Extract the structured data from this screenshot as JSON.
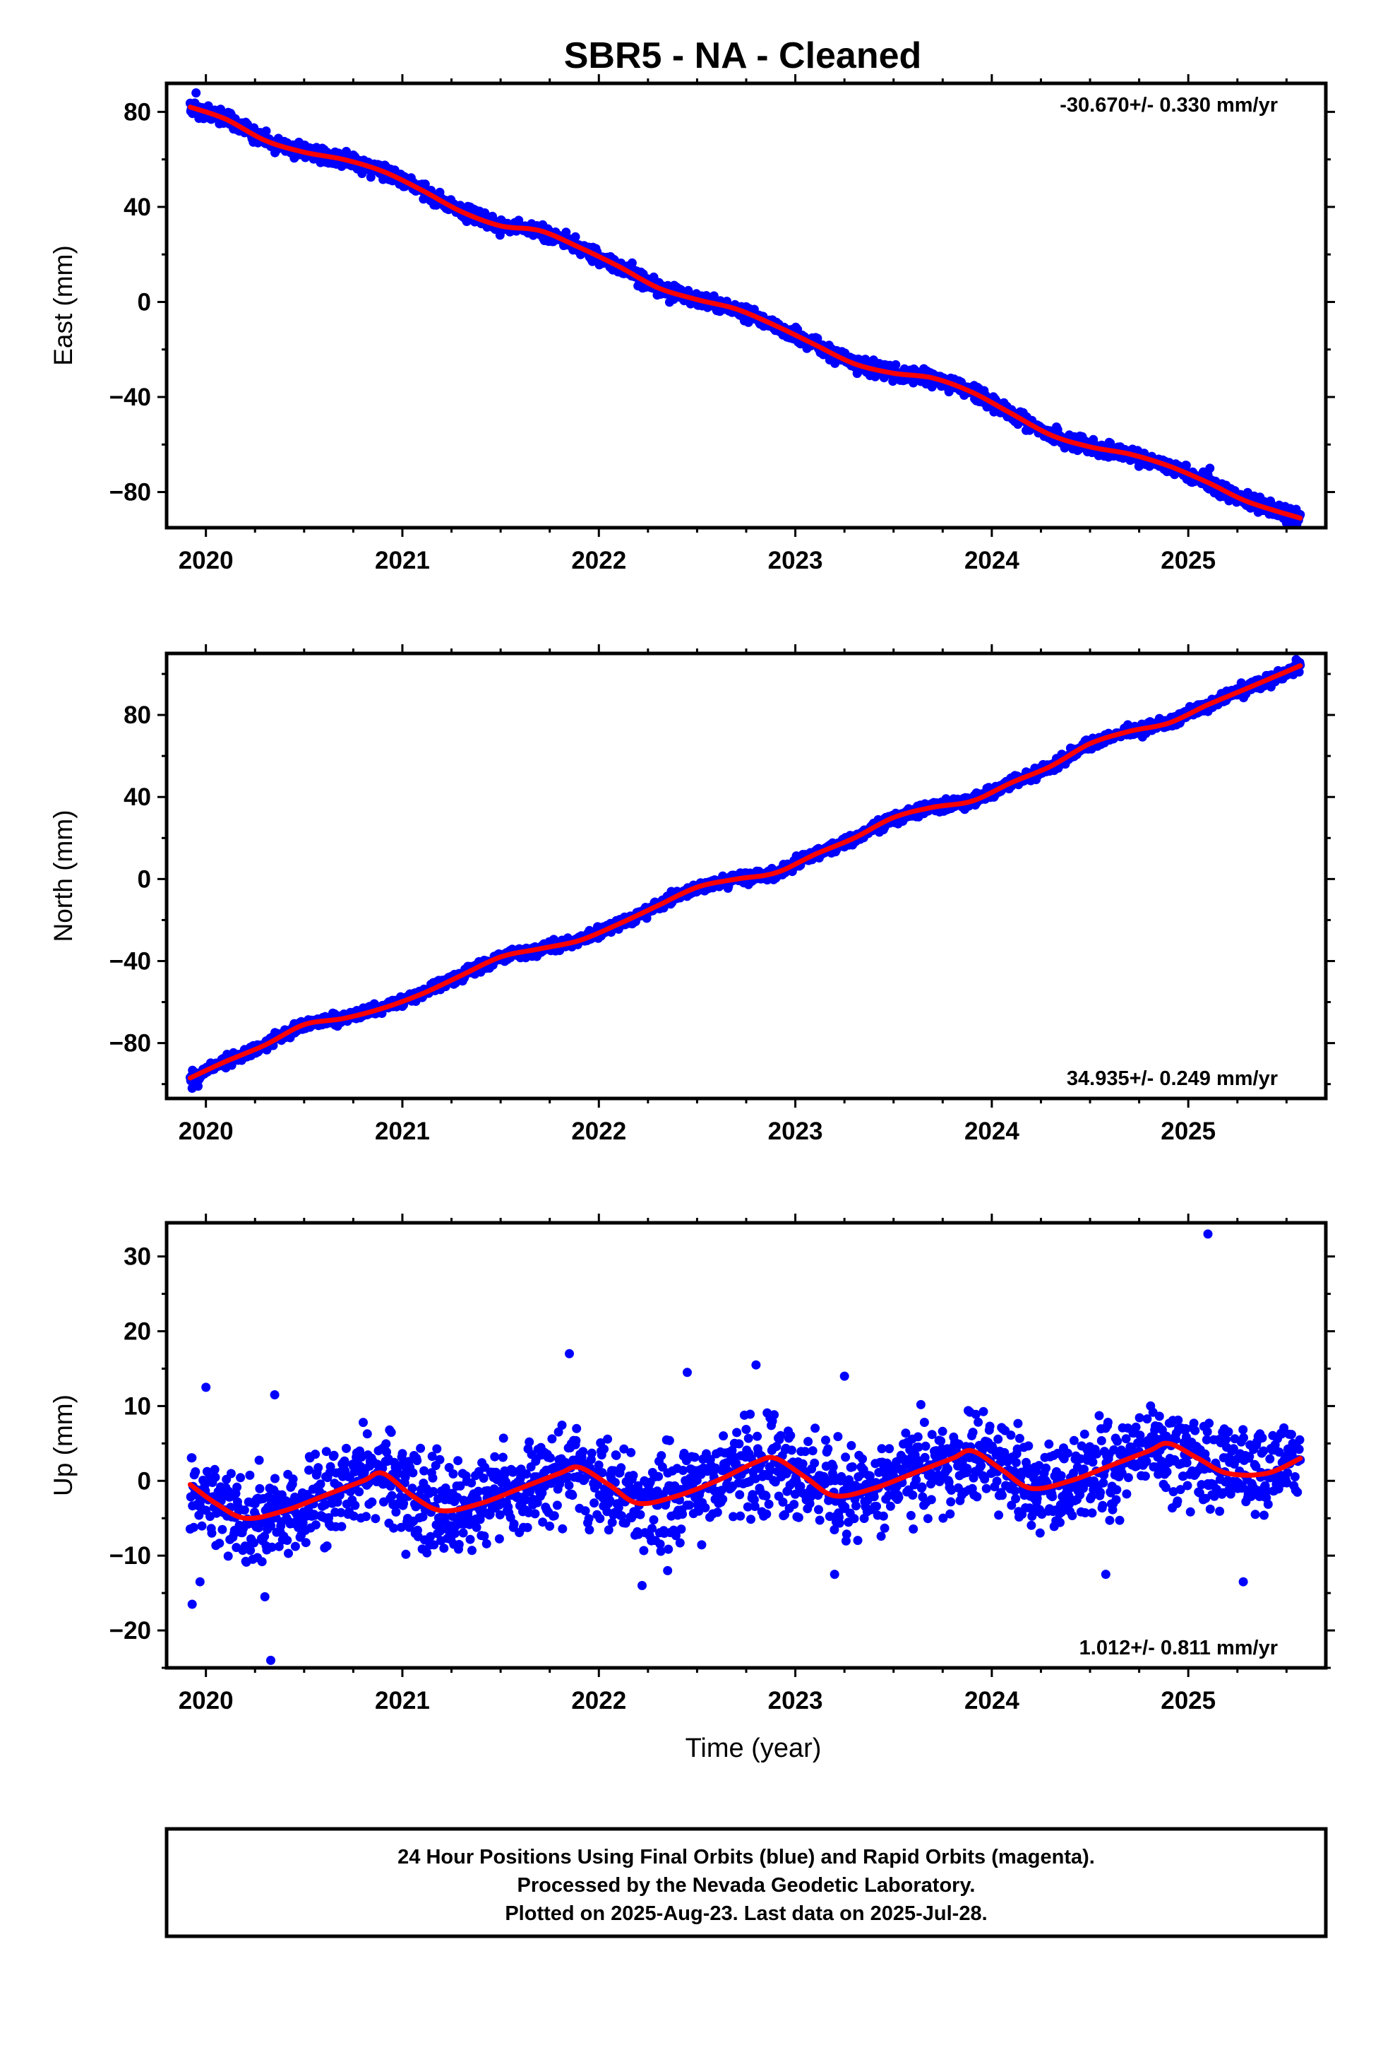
{
  "title": "SBR5  - NA - Cleaned",
  "footer": {
    "lines": [
      "24 Hour Positions Using Final Orbits (blue) and Rapid Orbits (magenta).",
      "Processed by the Nevada Geodetic Laboratory.",
      "Plotted on 2025-Aug-23. Last data on 2025-Jul-28."
    ]
  },
  "colors": {
    "points": "#0000ff",
    "model": "#ff0000",
    "frame": "#000000"
  },
  "chart_data": [
    {
      "type": "scatter",
      "ylabel": "East (mm)",
      "xlabel": "",
      "xlim": [
        2019.8,
        2025.7
      ],
      "ylim": [
        -95,
        92
      ],
      "x_ticks": [
        2020,
        2021,
        2022,
        2023,
        2024,
        2025
      ],
      "y_ticks": [
        -80,
        -40,
        0,
        40,
        80
      ],
      "rate_label": "-30.670+/- 0.330 mm/yr",
      "rate_position": "top-right",
      "grid": false,
      "series": [
        {
          "role": "model",
          "x": [
            2019.92,
            2020.1,
            2020.3,
            2020.5,
            2020.7,
            2020.9,
            2021.1,
            2021.3,
            2021.5,
            2021.7,
            2021.9,
            2022.1,
            2022.3,
            2022.5,
            2022.7,
            2022.9,
            2023.1,
            2023.3,
            2023.5,
            2023.7,
            2023.9,
            2024.1,
            2024.3,
            2024.5,
            2024.7,
            2024.9,
            2025.1,
            2025.3,
            2025.57
          ],
          "y": [
            82,
            77,
            68,
            63,
            60,
            55,
            47,
            38,
            32,
            30,
            23,
            15,
            6,
            1,
            -3,
            -10,
            -18,
            -26,
            -30,
            -32,
            -38,
            -47,
            -56,
            -61,
            -64,
            -69,
            -76,
            -84,
            -91
          ]
        },
        {
          "role": "observations",
          "x_start": 2019.92,
          "x_end": 2025.57,
          "count": 1900,
          "scatter_mm": 2.2,
          "outliers": [
            [
              2019.95,
              88
            ],
            [
              2025.11,
              -70
            ],
            [
              2025.5,
              -93
            ]
          ]
        }
      ]
    },
    {
      "type": "scatter",
      "ylabel": "North (mm)",
      "xlabel": "",
      "xlim": [
        2019.8,
        2025.7
      ],
      "ylim": [
        -107,
        110
      ],
      "x_ticks": [
        2020,
        2021,
        2022,
        2023,
        2024,
        2025
      ],
      "y_ticks": [
        -80,
        -40,
        0,
        40,
        80
      ],
      "rate_label": "34.935+/- 0.249 mm/yr",
      "rate_position": "bottom-right",
      "grid": false,
      "series": [
        {
          "role": "model",
          "x": [
            2019.92,
            2020.1,
            2020.3,
            2020.5,
            2020.7,
            2020.9,
            2021.1,
            2021.3,
            2021.5,
            2021.7,
            2021.9,
            2022.1,
            2022.3,
            2022.5,
            2022.7,
            2022.9,
            2023.1,
            2023.3,
            2023.5,
            2023.7,
            2023.9,
            2024.1,
            2024.3,
            2024.5,
            2024.7,
            2024.9,
            2025.1,
            2025.3,
            2025.57
          ],
          "y": [
            -97,
            -89,
            -81,
            -71,
            -68,
            -63,
            -56,
            -47,
            -38,
            -34,
            -30,
            -22,
            -13,
            -4,
            0,
            3,
            12,
            20,
            30,
            35,
            38,
            47,
            55,
            66,
            72,
            76,
            85,
            93,
            104
          ]
        },
        {
          "role": "observations",
          "x_start": 2019.92,
          "x_end": 2025.57,
          "count": 1900,
          "scatter_mm": 2.0,
          "outliers": [
            [
              2019.93,
              -102
            ],
            [
              2019.96,
              -101
            ],
            [
              2025.56,
              106
            ]
          ]
        }
      ]
    },
    {
      "type": "scatter",
      "ylabel": "Up (mm)",
      "xlabel": "Time (year)",
      "xlim": [
        2019.8,
        2025.7
      ],
      "ylim": [
        -25,
        34.5
      ],
      "x_ticks": [
        2020,
        2021,
        2022,
        2023,
        2024,
        2025
      ],
      "y_ticks": [
        -20,
        -10,
        0,
        10,
        20,
        30
      ],
      "rate_label": "1.012+/- 0.811 mm/yr",
      "rate_position": "bottom-right",
      "grid": false,
      "series": [
        {
          "role": "model",
          "x": [
            2019.92,
            2020.05,
            2020.2,
            2020.4,
            2020.6,
            2020.8,
            2020.9,
            2021.05,
            2021.2,
            2021.4,
            2021.6,
            2021.8,
            2021.9,
            2022.05,
            2022.2,
            2022.4,
            2022.6,
            2022.8,
            2022.9,
            2023.05,
            2023.2,
            2023.4,
            2023.6,
            2023.8,
            2023.9,
            2024.05,
            2024.2,
            2024.4,
            2024.6,
            2024.8,
            2024.9,
            2025.05,
            2025.2,
            2025.4,
            2025.57
          ],
          "y": [
            -0.5,
            -3,
            -5,
            -4,
            -2,
            0,
            1,
            -2,
            -4,
            -3,
            -1,
            1,
            1.8,
            -0.5,
            -3,
            -2,
            0,
            2.5,
            3,
            0.5,
            -2,
            -1,
            1,
            3,
            4,
            1.5,
            -1,
            0,
            2,
            4,
            5,
            3,
            1,
            1,
            3
          ]
        },
        {
          "role": "observations",
          "x_start": 2019.92,
          "x_end": 2025.57,
          "count": 1900,
          "scatter_mm": 4.2,
          "outliers": [
            [
              2019.93,
              -16.5
            ],
            [
              2019.97,
              -13.5
            ],
            [
              2020.0,
              12.5
            ],
            [
              2020.3,
              -15.5
            ],
            [
              2020.33,
              -24
            ],
            [
              2020.35,
              11.5
            ],
            [
              2021.85,
              17
            ],
            [
              2022.22,
              -14
            ],
            [
              2022.35,
              -12
            ],
            [
              2022.45,
              14.5
            ],
            [
              2022.8,
              15.5
            ],
            [
              2023.25,
              14
            ],
            [
              2023.2,
              -12.5
            ],
            [
              2025.1,
              33
            ],
            [
              2025.28,
              -13.5
            ],
            [
              2024.58,
              -12.5
            ]
          ]
        }
      ]
    }
  ]
}
